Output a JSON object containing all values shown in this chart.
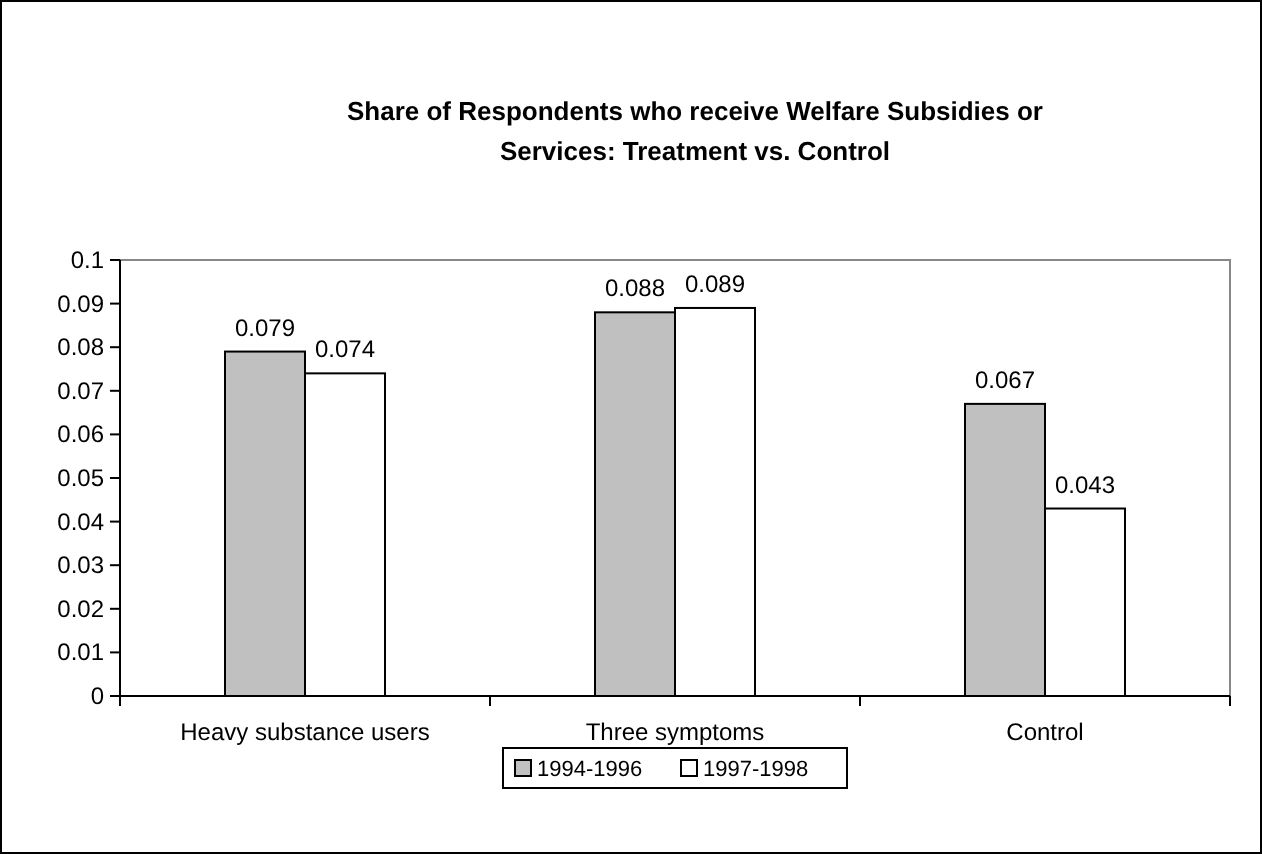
{
  "chart_data": {
    "type": "bar",
    "title": "Share of Respondents who receive Welfare Subsidies or Services: Treatment vs. Control",
    "categories": [
      "Heavy substance users",
      "Three symptoms",
      "Control"
    ],
    "series": [
      {
        "name": "1994-1996",
        "color": "#c0c0c0",
        "values": [
          0.079,
          0.088,
          0.067
        ]
      },
      {
        "name": "1997-1998",
        "color": "#ffffff",
        "values": [
          0.074,
          0.089,
          0.043
        ]
      }
    ],
    "ylim": [
      0,
      0.1
    ],
    "yticks": [
      0,
      0.01,
      0.02,
      0.03,
      0.04,
      0.05,
      0.06,
      0.07,
      0.08,
      0.09,
      0.1
    ],
    "data_labels": true,
    "grid": false,
    "legend": "bottom"
  }
}
